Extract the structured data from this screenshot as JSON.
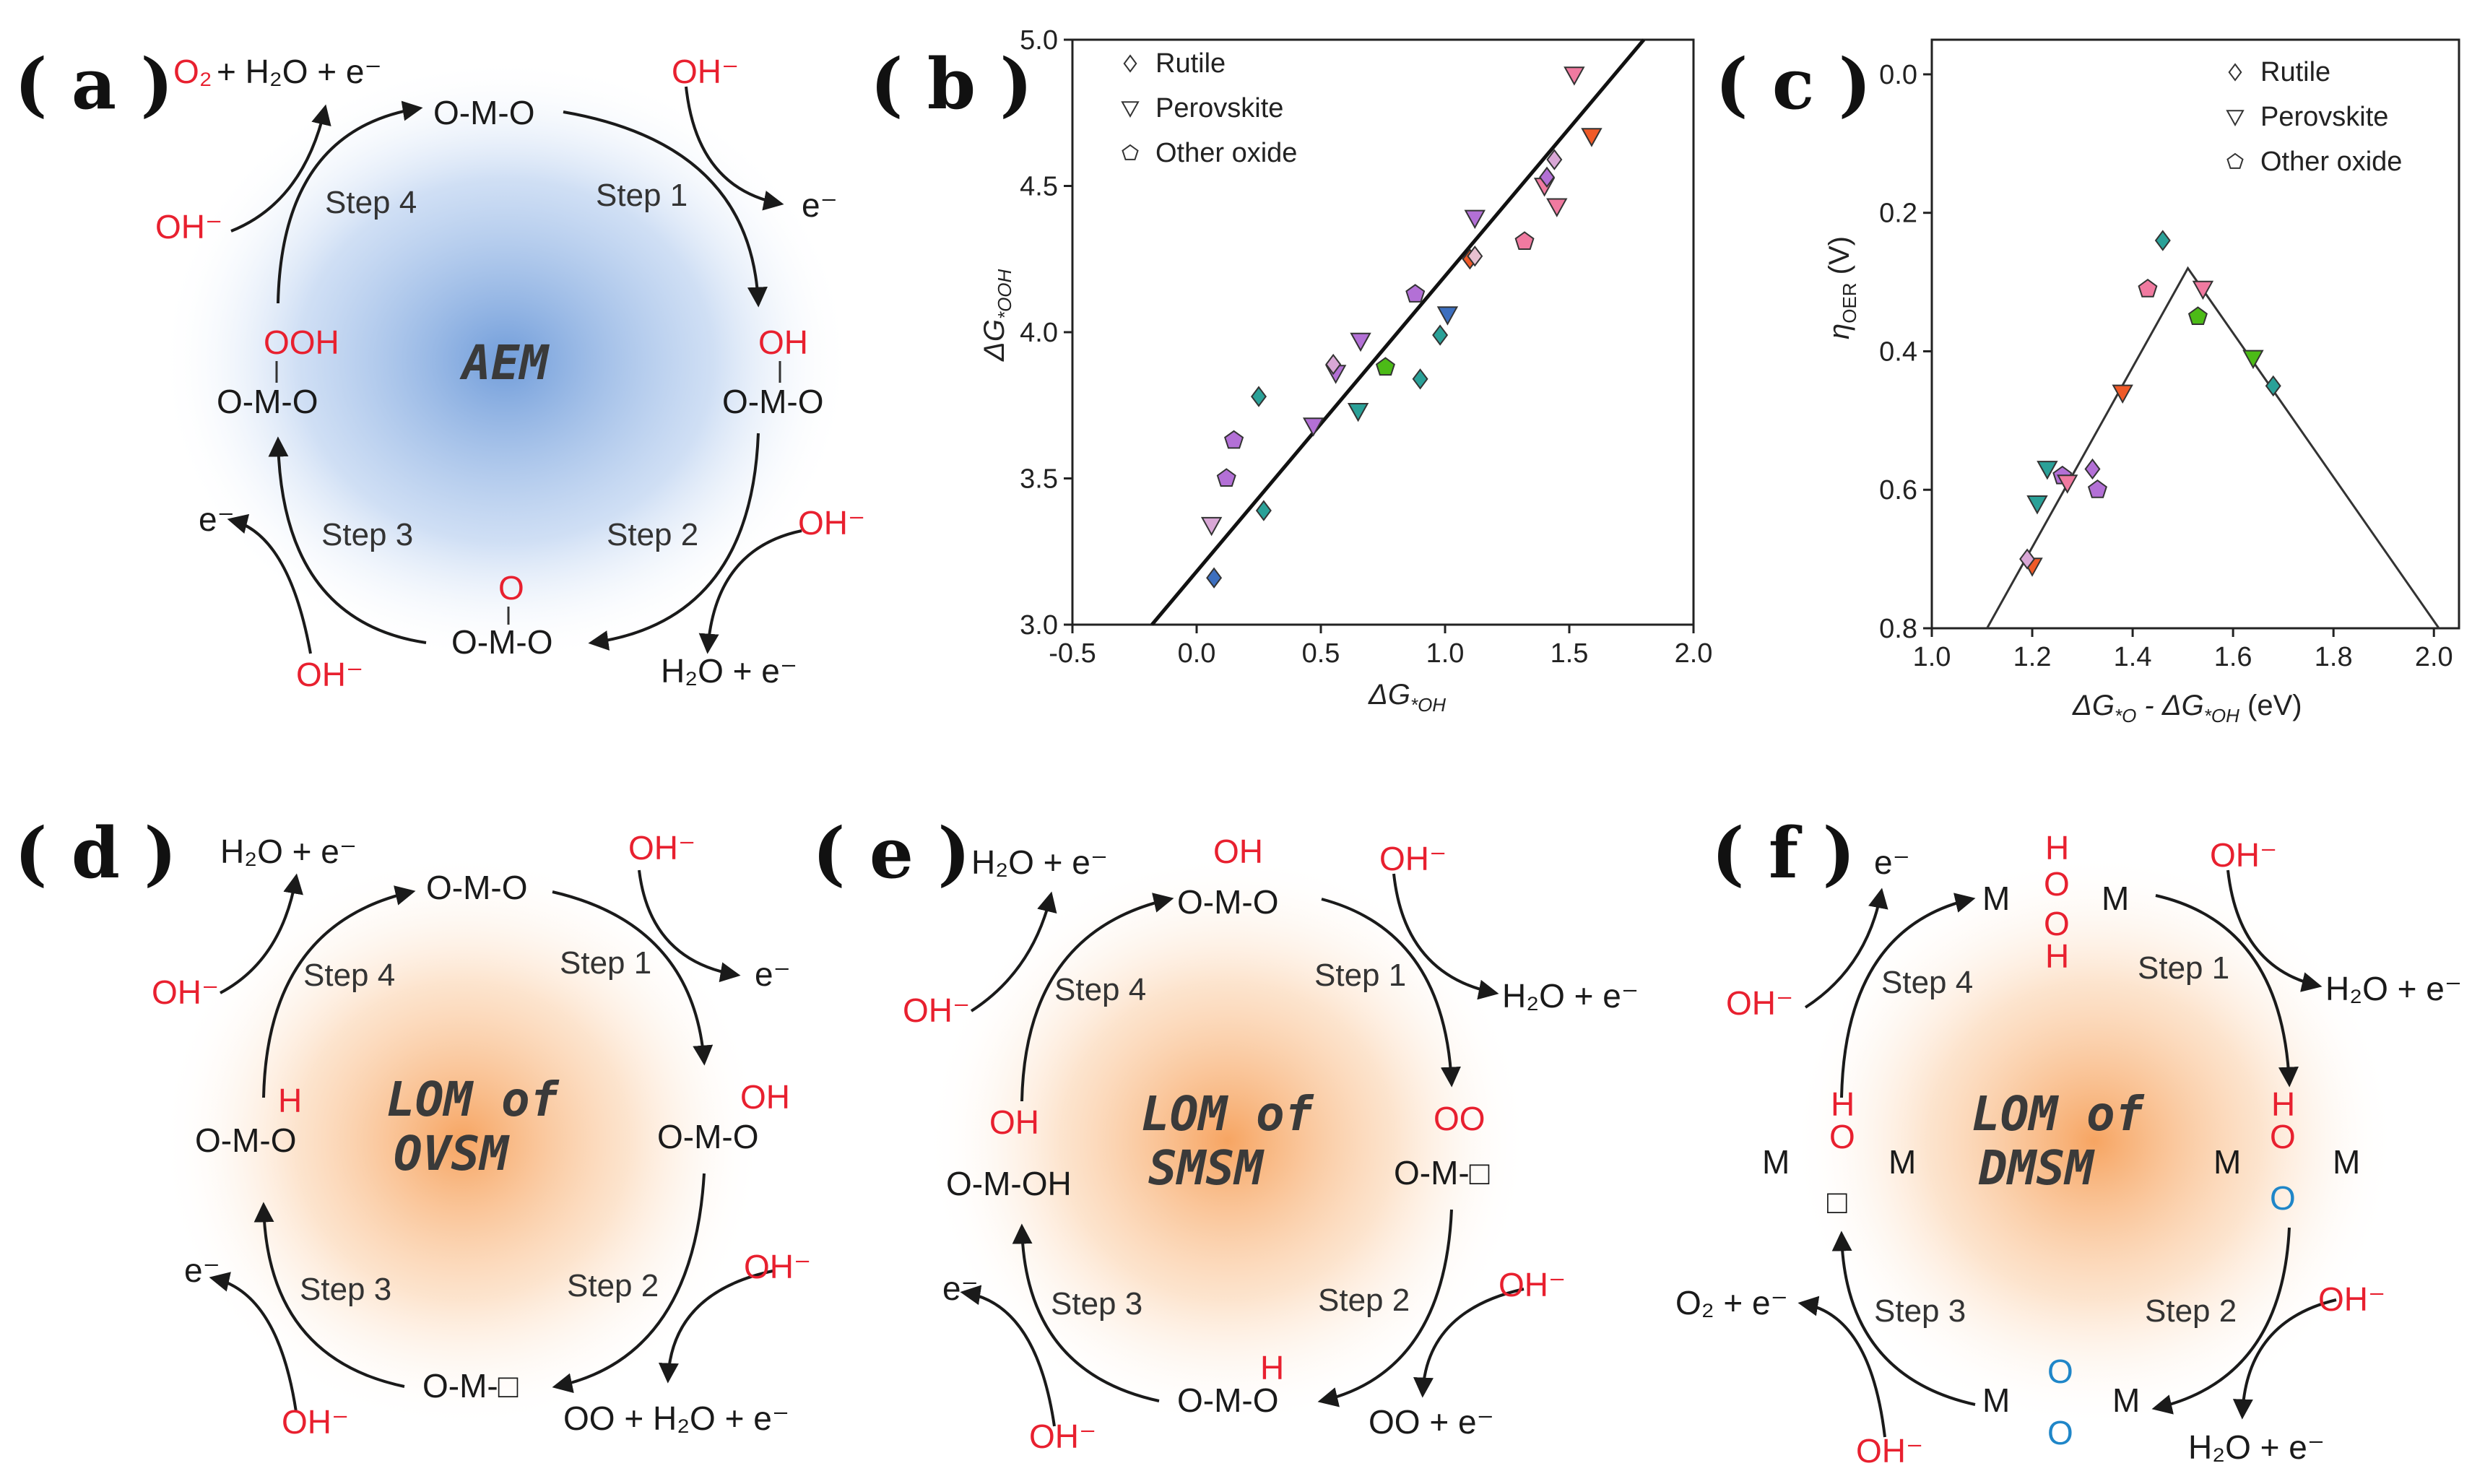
{
  "panels": {
    "a": {
      "label": "( a )",
      "center": "AEM",
      "species": {
        "top": "O-M-O",
        "right": "OH",
        "right_base": "O-M-O",
        "bottom_top": "O",
        "bottom": "O-M-O",
        "left_top": "OOH",
        "left": "O-M-O"
      },
      "steps": [
        "Step 1",
        "Step 2",
        "Step 3",
        "Step 4"
      ],
      "reagents": {
        "oh": "OH⁻",
        "e": "e⁻",
        "o2": "O₂",
        "h2o_e": "+ H₂O + e⁻",
        "h2o_step2": "H₂O + e⁻"
      }
    },
    "b": {
      "label": "( b )"
    },
    "c": {
      "label": "( c )"
    },
    "d": {
      "label": "( d )",
      "center_line1": "LOM of",
      "center_line2": "OVSM",
      "species": {
        "top": "O-M-O",
        "right_top": "OH",
        "right": "O-M-O",
        "bottom": "O-M-□",
        "left_top": "H",
        "left": "O-M-O"
      },
      "reagents": {
        "top_left": "H₂O + e⁻",
        "bottom_right": "OO + H₂O + e⁻",
        "oh": "OH⁻",
        "e": "e⁻"
      }
    },
    "e": {
      "label": "( e )",
      "center_line1": "LOM of",
      "center_line2": "SMSM",
      "species": {
        "top_oh": "OH",
        "top": "O-M-O",
        "right_top": "OO",
        "right": "O-M-□",
        "bottom_h": "H",
        "bottom": "O-M-O",
        "left_oh": "OH",
        "left": "O-M-OH"
      },
      "reagents": {
        "top_left": "H₂O + e⁻",
        "top_right": "H₂O + e⁻",
        "bottom_right": "OO + e⁻",
        "oh": "OH⁻",
        "e": "e⁻"
      }
    },
    "f": {
      "label": "( f )",
      "center_line1": "LOM of",
      "center_line2": "DMSM",
      "species": {
        "h": "H",
        "o": "O",
        "m": "M",
        "box": "□"
      },
      "reagents": {
        "top_right": "H₂O + e⁻",
        "bottom_right": "H₂O + e⁻",
        "left": "O₂ + e⁻",
        "oh": "OH⁻",
        "e": "e⁻"
      }
    }
  },
  "steps": [
    "Step 1",
    "Step 2",
    "Step 3",
    "Step 4"
  ],
  "chart_data": [
    {
      "type": "scatter",
      "panel": "b",
      "xlabel": "ΔG*OH",
      "ylabel": "ΔG*OOH",
      "xlim": [
        -0.5,
        2.0
      ],
      "ylim": [
        3.0,
        5.0
      ],
      "xticks": [
        "-0.5",
        "0.0",
        "0.5",
        "1.0",
        "1.5",
        "2.0"
      ],
      "yticks": [
        "3.0",
        "3.5",
        "4.0",
        "4.5",
        "5.0"
      ],
      "legend": [
        "Rutile",
        "Perovskite",
        "Other oxide"
      ],
      "fit_line": {
        "x": [
          -0.18,
          1.8
        ],
        "y": [
          3.0,
          5.0
        ]
      },
      "points": [
        {
          "x": 0.07,
          "y": 3.16,
          "m": "d",
          "c": "#3d6fbf"
        },
        {
          "x": 0.06,
          "y": 3.34,
          "m": "t",
          "c": "#d9a7d6"
        },
        {
          "x": 0.27,
          "y": 3.39,
          "m": "d",
          "c": "#2aa198"
        },
        {
          "x": 0.12,
          "y": 3.5,
          "m": "p",
          "c": "#b370d6"
        },
        {
          "x": 0.15,
          "y": 3.63,
          "m": "p",
          "c": "#b370d6"
        },
        {
          "x": 0.25,
          "y": 3.78,
          "m": "d",
          "c": "#2aa198"
        },
        {
          "x": 0.47,
          "y": 3.68,
          "m": "t",
          "c": "#b370d6"
        },
        {
          "x": 0.56,
          "y": 3.86,
          "m": "t",
          "c": "#b370d6"
        },
        {
          "x": 0.55,
          "y": 3.89,
          "m": "d",
          "c": "#d9a7d6"
        },
        {
          "x": 0.65,
          "y": 3.73,
          "m": "t",
          "c": "#2aa198"
        },
        {
          "x": 0.66,
          "y": 3.97,
          "m": "t",
          "c": "#b370d6"
        },
        {
          "x": 0.76,
          "y": 3.88,
          "m": "p",
          "c": "#4cbb17"
        },
        {
          "x": 0.88,
          "y": 4.13,
          "m": "p",
          "c": "#b370d6"
        },
        {
          "x": 0.9,
          "y": 3.84,
          "m": "d",
          "c": "#2aa198"
        },
        {
          "x": 0.98,
          "y": 3.99,
          "m": "d",
          "c": "#2aa198"
        },
        {
          "x": 1.01,
          "y": 4.06,
          "m": "t",
          "c": "#3d6fbf"
        },
        {
          "x": 1.1,
          "y": 4.25,
          "m": "d",
          "c": "#f05a28"
        },
        {
          "x": 1.12,
          "y": 4.26,
          "m": "d",
          "c": "#e8c0d0"
        },
        {
          "x": 1.12,
          "y": 4.39,
          "m": "t",
          "c": "#b370d6"
        },
        {
          "x": 1.32,
          "y": 4.31,
          "m": "p",
          "c": "#f07aa0"
        },
        {
          "x": 1.4,
          "y": 4.5,
          "m": "t",
          "c": "#f07aa0"
        },
        {
          "x": 1.41,
          "y": 4.53,
          "m": "d",
          "c": "#b370d6"
        },
        {
          "x": 1.44,
          "y": 4.59,
          "m": "d",
          "c": "#d9a7d6"
        },
        {
          "x": 1.45,
          "y": 4.43,
          "m": "t",
          "c": "#f07aa0"
        },
        {
          "x": 1.52,
          "y": 4.88,
          "m": "t",
          "c": "#f07aa0"
        },
        {
          "x": 1.59,
          "y": 4.67,
          "m": "t",
          "c": "#f05a28"
        }
      ]
    },
    {
      "type": "scatter",
      "panel": "c",
      "xlabel": "ΔG*O - ΔG*OH (eV)",
      "ylabel": "ηOER (V)",
      "xlim": [
        1.0,
        2.05
      ],
      "ylim": [
        0.8,
        -0.05
      ],
      "xticks": [
        "1.0",
        "1.2",
        "1.4",
        "1.6",
        "1.8",
        "2.0"
      ],
      "yticks": [
        "0.0",
        "0.2",
        "0.4",
        "0.6",
        "0.8"
      ],
      "legend": [
        "Rutile",
        "Perovskite",
        "Other oxide"
      ],
      "volcano": {
        "x": [
          1.11,
          1.51,
          2.01
        ],
        "y": [
          0.8,
          0.28,
          0.8
        ]
      },
      "points": [
        {
          "x": 1.2,
          "y": 0.71,
          "m": "t",
          "c": "#f05a28"
        },
        {
          "x": 1.19,
          "y": 0.7,
          "m": "d",
          "c": "#d9a7d6"
        },
        {
          "x": 1.21,
          "y": 0.62,
          "m": "t",
          "c": "#2aa198"
        },
        {
          "x": 1.23,
          "y": 0.57,
          "m": "t",
          "c": "#2aa198"
        },
        {
          "x": 1.26,
          "y": 0.58,
          "m": "p",
          "c": "#b370d6"
        },
        {
          "x": 1.27,
          "y": 0.59,
          "m": "t",
          "c": "#f07aa0"
        },
        {
          "x": 1.32,
          "y": 0.57,
          "m": "d",
          "c": "#b370d6"
        },
        {
          "x": 1.33,
          "y": 0.6,
          "m": "p",
          "c": "#b370d6"
        },
        {
          "x": 1.38,
          "y": 0.46,
          "m": "t",
          "c": "#f05a28"
        },
        {
          "x": 1.43,
          "y": 0.31,
          "m": "p",
          "c": "#f07aa0"
        },
        {
          "x": 1.46,
          "y": 0.24,
          "m": "d",
          "c": "#2aa198"
        },
        {
          "x": 1.53,
          "y": 0.35,
          "m": "p",
          "c": "#4cbb17"
        },
        {
          "x": 1.54,
          "y": 0.31,
          "m": "t",
          "c": "#f07aa0"
        },
        {
          "x": 1.64,
          "y": 0.41,
          "m": "t",
          "c": "#4cbb17"
        },
        {
          "x": 1.68,
          "y": 0.45,
          "m": "d",
          "c": "#2aa198"
        }
      ]
    }
  ]
}
